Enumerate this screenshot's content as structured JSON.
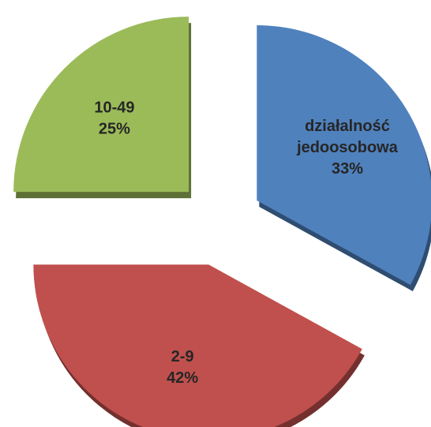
{
  "chart_data": {
    "type": "pie",
    "categories": [
      "działalność jedoosobowa",
      "2-9",
      "10-49"
    ],
    "values": [
      33,
      42,
      25
    ],
    "value_labels": [
      "33%",
      "42%",
      "25%"
    ],
    "colors": [
      "#4f81bd",
      "#c0504d",
      "#9bbb59"
    ]
  }
}
